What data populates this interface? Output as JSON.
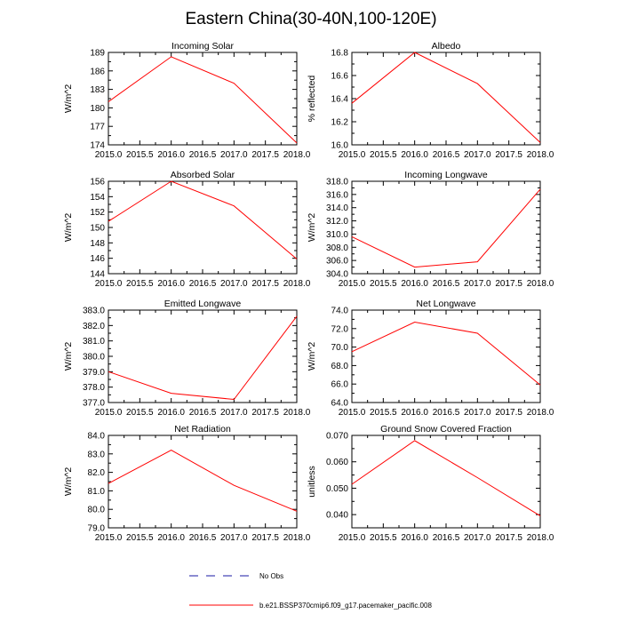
{
  "figure": {
    "title": "Eastern China(30-40N,100-120E)",
    "line_color": "#ff0000",
    "obs_color": "#1a1aa6"
  },
  "legend": {
    "obs_label": "No Obs",
    "model_label": "b.e21.BSSP370cmip6.f09_g17.pacemaker_pacific.008"
  },
  "chart_data": [
    {
      "type": "line",
      "title": "Incoming Solar",
      "ylabel": "W/m^2",
      "x": [
        2015.0,
        2016.0,
        2017.0,
        2018.0
      ],
      "values": [
        181.0,
        188.3,
        184.0,
        174.3
      ],
      "ylim": [
        174,
        189
      ],
      "yticks": [
        174,
        177,
        180,
        183,
        186,
        189
      ],
      "ytick_labels": [
        "174",
        "177",
        "180",
        "183",
        "186",
        "189"
      ],
      "xticks": [
        2015.0,
        2015.5,
        2016.0,
        2016.5,
        2017.0,
        2017.5,
        2018.0
      ],
      "xtick_labels": [
        "2015.0",
        "2015.5",
        "2016.0",
        "2016.5",
        "2017.0",
        "2017.5",
        "2018.0"
      ]
    },
    {
      "type": "line",
      "title": "Albedo",
      "ylabel": "% reflected",
      "x": [
        2015.0,
        2016.0,
        2017.0,
        2018.0
      ],
      "values": [
        16.36,
        16.8,
        16.53,
        16.02
      ],
      "ylim": [
        16.0,
        16.8
      ],
      "yticks": [
        16.0,
        16.2,
        16.4,
        16.6,
        16.8
      ],
      "ytick_labels": [
        "16.0",
        "16.2",
        "16.4",
        "16.6",
        "16.8"
      ],
      "xticks": [
        2015.0,
        2015.5,
        2016.0,
        2016.5,
        2017.0,
        2017.5,
        2018.0
      ],
      "xtick_labels": [
        "2015.0",
        "2015.5",
        "2016.0",
        "2016.5",
        "2017.0",
        "2017.5",
        "2018.0"
      ]
    },
    {
      "type": "line",
      "title": "Absorbed Solar",
      "ylabel": "W/m^2",
      "x": [
        2015.0,
        2016.0,
        2017.0,
        2018.0
      ],
      "values": [
        150.8,
        156.0,
        152.8,
        145.9
      ],
      "ylim": [
        144,
        156
      ],
      "yticks": [
        144,
        146,
        148,
        150,
        152,
        154,
        156
      ],
      "ytick_labels": [
        "144",
        "146",
        "148",
        "150",
        "152",
        "154",
        "156"
      ],
      "xticks": [
        2015.0,
        2015.5,
        2016.0,
        2016.5,
        2017.0,
        2017.5,
        2018.0
      ],
      "xtick_labels": [
        "2015.0",
        "2015.5",
        "2016.0",
        "2016.5",
        "2017.0",
        "2017.5",
        "2018.0"
      ]
    },
    {
      "type": "line",
      "title": "Incoming Longwave",
      "ylabel": "W/m^2",
      "x": [
        2015.0,
        2016.0,
        2017.0,
        2018.0
      ],
      "values": [
        309.6,
        305.0,
        305.8,
        316.8
      ],
      "ylim": [
        304,
        318
      ],
      "yticks": [
        304,
        306,
        308,
        310,
        312,
        314,
        316,
        318
      ],
      "ytick_labels": [
        "304.0",
        "306.0",
        "308.0",
        "310.0",
        "312.0",
        "314.0",
        "316.0",
        "318.0"
      ],
      "xticks": [
        2015.0,
        2015.5,
        2016.0,
        2016.5,
        2017.0,
        2017.5,
        2018.0
      ],
      "xtick_labels": [
        "2015.0",
        "2015.5",
        "2016.0",
        "2016.5",
        "2017.0",
        "2017.5",
        "2018.0"
      ]
    },
    {
      "type": "line",
      "title": "Emitted Longwave",
      "ylabel": "W/m^2",
      "x": [
        2015.0,
        2016.0,
        2017.0,
        2018.0
      ],
      "values": [
        379.0,
        377.6,
        377.2,
        382.6
      ],
      "ylim": [
        377,
        383
      ],
      "yticks": [
        377,
        378,
        379,
        380,
        381,
        382,
        383
      ],
      "ytick_labels": [
        "377.0",
        "378.0",
        "379.0",
        "380.0",
        "381.0",
        "382.0",
        "383.0"
      ],
      "xticks": [
        2015.0,
        2015.5,
        2016.0,
        2016.5,
        2017.0,
        2017.5,
        2018.0
      ],
      "xtick_labels": [
        "2015.0",
        "2015.5",
        "2016.0",
        "2016.5",
        "2017.0",
        "2017.5",
        "2018.0"
      ]
    },
    {
      "type": "line",
      "title": "Net Longwave",
      "ylabel": "W/m^2",
      "x": [
        2015.0,
        2016.0,
        2017.0,
        2018.0
      ],
      "values": [
        69.5,
        72.7,
        71.5,
        65.9
      ],
      "ylim": [
        64,
        74
      ],
      "yticks": [
        64,
        66,
        68,
        70,
        72,
        74
      ],
      "ytick_labels": [
        "64.0",
        "66.0",
        "68.0",
        "70.0",
        "72.0",
        "74.0"
      ],
      "xticks": [
        2015.0,
        2015.5,
        2016.0,
        2016.5,
        2017.0,
        2017.5,
        2018.0
      ],
      "xtick_labels": [
        "2015.0",
        "2015.5",
        "2016.0",
        "2016.5",
        "2017.0",
        "2017.5",
        "2018.0"
      ]
    },
    {
      "type": "line",
      "title": "Net Radiation",
      "ylabel": "W/m^2",
      "x": [
        2015.0,
        2016.0,
        2017.0,
        2018.0
      ],
      "values": [
        81.4,
        83.2,
        81.3,
        79.9
      ],
      "ylim": [
        79,
        84
      ],
      "yticks": [
        79,
        80,
        81,
        82,
        83,
        84
      ],
      "ytick_labels": [
        "79.0",
        "80.0",
        "81.0",
        "82.0",
        "83.0",
        "84.0"
      ],
      "xticks": [
        2015.0,
        2015.5,
        2016.0,
        2016.5,
        2017.0,
        2017.5,
        2018.0
      ],
      "xtick_labels": [
        "2015.0",
        "2015.5",
        "2016.0",
        "2016.5",
        "2017.0",
        "2017.5",
        "2018.0"
      ]
    },
    {
      "type": "line",
      "title": "Ground Snow Covered Fraction",
      "ylabel": "unitless",
      "x": [
        2015.0,
        2016.0,
        2017.0,
        2018.0
      ],
      "values": [
        0.0515,
        0.068,
        0.054,
        0.0395
      ],
      "ylim": [
        0.035,
        0.07
      ],
      "yticks": [
        0.04,
        0.05,
        0.06,
        0.07
      ],
      "ytick_labels": [
        "0.040",
        "0.050",
        "0.060",
        "0.070"
      ],
      "xticks": [
        2015.0,
        2015.5,
        2016.0,
        2016.5,
        2017.0,
        2017.5,
        2018.0
      ],
      "xtick_labels": [
        "2015.0",
        "2015.5",
        "2016.0",
        "2016.5",
        "2017.0",
        "2017.5",
        "2018.0"
      ]
    }
  ]
}
